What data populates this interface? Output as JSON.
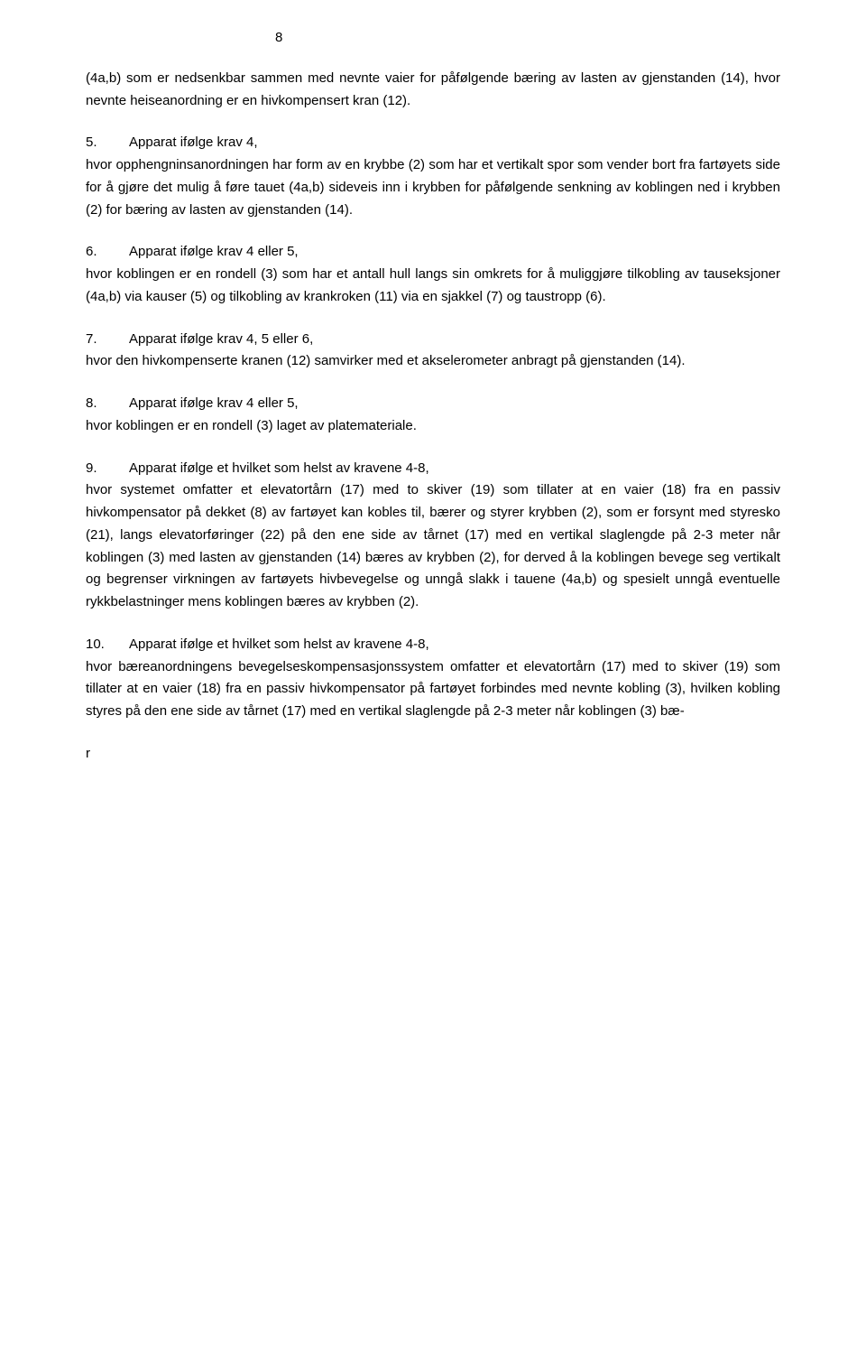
{
  "page_number": "8",
  "para_intro": "(4a,b)  som er nedsenkbar sammen med nevnte vaier for påfølgende bæring av lasten av gjenstanden (14), hvor  nevnte heiseanordning er en hivkompensert kran (12).",
  "item5_num": "5.",
  "item5_title": "Apparat ifølge krav 4,",
  "item5_body": "hvor opphengninsanordningen har form av en krybbe (2) som har et vertikalt spor som vender bort fra fartøyets side for å gjøre det mulig å føre tauet (4a,b) sideveis inn i krybben for påfølgende senkning av koblingen ned i krybben (2) for bæring av lasten av gjenstanden (14).",
  "item6_num": "6.",
  "item6_title": "Apparat ifølge krav 4 eller 5,",
  "item6_body": "hvor koblingen er en rondell (3) som har et antall hull langs sin omkrets for å muliggjøre tilkobling av tauseksjoner (4a,b) via kauser (5) og tilkobling av krankroken (11) via en sjakkel (7) og taustropp (6).",
  "item7_num": "7.",
  "item7_title": "Apparat ifølge krav 4, 5 eller 6,",
  "item7_body": "hvor den hivkompenserte kranen (12) samvirker med et akselerometer anbragt på gjenstanden (14).",
  "item8_num": "8.",
  "item8_title": "Apparat ifølge krav 4 eller 5,",
  "item8_body": "hvor koblingen er en rondell (3) laget av platemateriale.",
  "item9_num": "9.",
  "item9_title": "Apparat ifølge et hvilket som helst av kravene 4-8,",
  "item9_body": "hvor systemet omfatter et elevatortårn (17) med to skiver (19) som tillater at en vaier (18) fra en passiv hivkompensator på dekket (8) av fartøyet kan kobles til, bærer og styrer krybben (2), som er forsynt med styresko (21), langs elevatorføringer (22) på den ene side av tårnet (17) med en vertikal slaglengde på 2-3 meter når koblingen (3) med lasten av gjenstanden (14) bæres av krybben (2), for derved å la koblingen bevege seg vertikalt og begrenser virkningen av fartøyets hivbevegelse og unngå slakk i tauene (4a,b) og spesielt unngå eventuelle rykkbelastninger mens koblingen bæres av krybben (2).",
  "item10_num": "10.",
  "item10_title": "Apparat ifølge et hvilket som helst av kravene 4-8,",
  "item10_body": "hvor bæreanordningens bevegelseskompensasjonssystem omfatter et elevatortårn (17) med to skiver (19) som tillater at en vaier (18) fra en passiv hivkompensator på fartøyet forbindes med nevnte kobling (3), hvilken kobling styres på den ene side av tårnet (17) med en vertikal slaglengde på 2-3 meter når koblingen (3) bæ-",
  "orphan_letter": "r"
}
